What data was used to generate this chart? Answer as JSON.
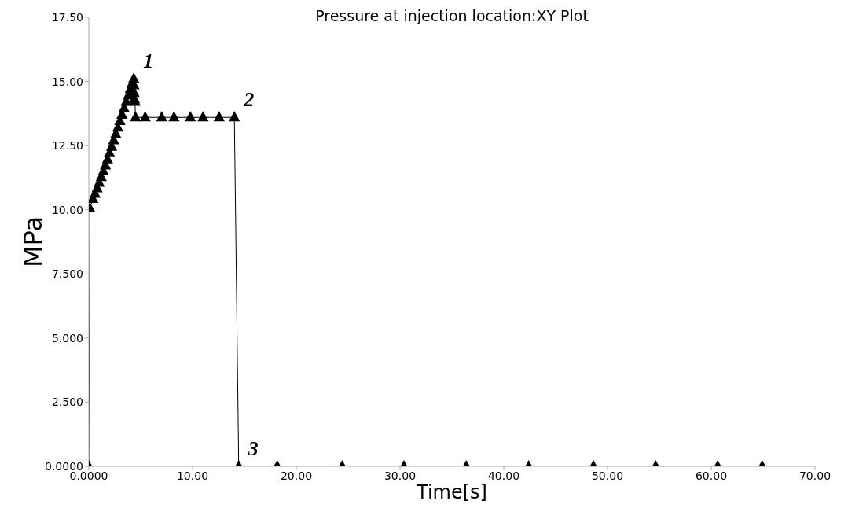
{
  "chart_data": {
    "type": "line",
    "title": "Pressure at injection location:XY Plot",
    "xlabel": "Time[s]",
    "ylabel": "MPa",
    "x": [
      0,
      0.1,
      0.39,
      0.6,
      0.8,
      1.0,
      1.2,
      1.4,
      1.6,
      1.8,
      2.0,
      2.2,
      2.4,
      2.6,
      2.8,
      3.0,
      3.2,
      3.4,
      3.6,
      3.8,
      4.0,
      4.15,
      4.33,
      4.35,
      4.37,
      4.4,
      4.45,
      4.5,
      5.43,
      7.03,
      8.21,
      9.79,
      11.01,
      12.56,
      14.03,
      14.45,
      18.16,
      24.42,
      30.37,
      36.39,
      42.4,
      48.64,
      54.64,
      60.62,
      64.91
    ],
    "series": [
      {
        "color": "#000000",
        "values": [
          0,
          10.05,
          10.42,
          10.62,
          10.83,
          11.05,
          11.27,
          11.49,
          11.72,
          11.96,
          12.2,
          12.45,
          12.7,
          12.95,
          13.2,
          13.45,
          13.7,
          13.95,
          14.2,
          14.45,
          14.7,
          14.9,
          15.1,
          14.85,
          14.55,
          14.3,
          14.2,
          13.6,
          13.6,
          13.6,
          13.6,
          13.6,
          13.6,
          13.6,
          13.6,
          0,
          0,
          0,
          0,
          0,
          0,
          0,
          0,
          0,
          0
        ]
      }
    ],
    "xlim": [
      0,
      70
    ],
    "xticks": [
      {
        "value": 0,
        "label": "0.0000"
      },
      {
        "value": 10,
        "label": "10.00"
      },
      {
        "value": 20,
        "label": "20.00"
      },
      {
        "value": 30,
        "label": "30.00"
      },
      {
        "value": 40,
        "label": "40.00"
      },
      {
        "value": 50,
        "label": "50.00"
      },
      {
        "value": 60,
        "label": "60.00"
      },
      {
        "value": 70,
        "label": "70.00"
      }
    ],
    "ylim": [
      0,
      17.5
    ],
    "yticks": [
      {
        "value": 0,
        "label": "0.0000"
      },
      {
        "value": 2.5,
        "label": "2.500"
      },
      {
        "value": 5,
        "label": "5.000"
      },
      {
        "value": 7.5,
        "label": "7.500"
      },
      {
        "value": 10,
        "label": "10.00"
      },
      {
        "value": 12.5,
        "label": "12.50"
      },
      {
        "value": 15,
        "label": "15.00"
      },
      {
        "value": 17.5,
        "label": "17.50"
      }
    ],
    "marker": "triangle",
    "line_style": "solid",
    "annotations": [
      {
        "text": "1",
        "x": 4.33,
        "y": 15.1
      },
      {
        "text": "2",
        "x": 14.03,
        "y": 13.6
      },
      {
        "text": "3",
        "x": 14.45,
        "y": 0
      }
    ]
  }
}
